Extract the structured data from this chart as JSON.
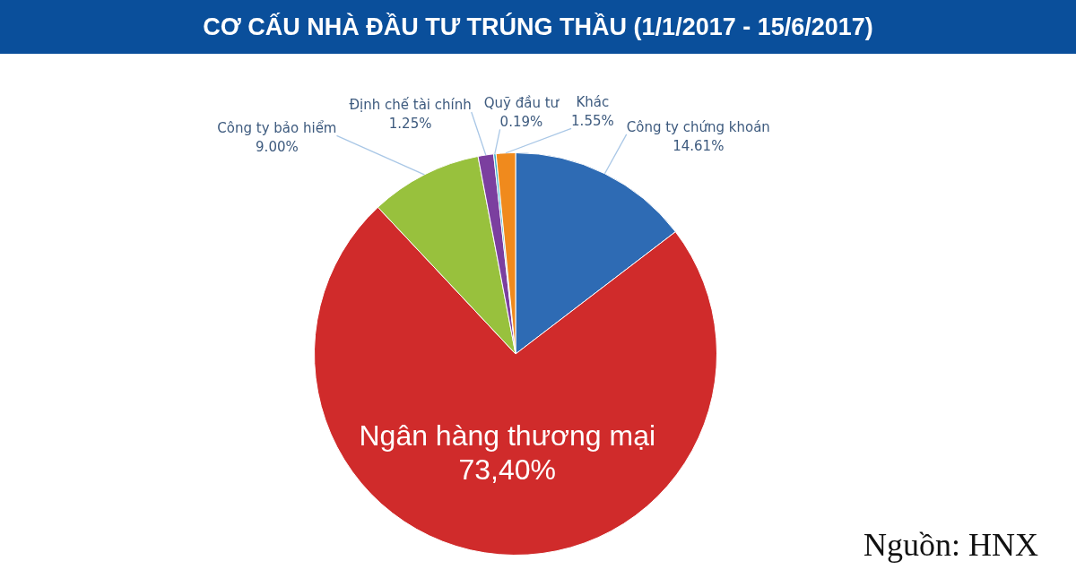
{
  "chart_data": {
    "type": "pie",
    "title": "CƠ CẤU NHÀ ĐẦU TƯ TRÚNG THẦU (1/1/2017 - 15/6/2017)",
    "categories": [
      "Công ty chứng khoán",
      "Ngân hàng thương mại",
      "Công ty bảo hiểm",
      "Định chế tài chính",
      "Quỹ đầu tư",
      "Khác"
    ],
    "values": [
      14.61,
      73.4,
      9.0,
      1.25,
      0.19,
      1.55
    ],
    "colors": [
      "#2e6bb4",
      "#d02b2b",
      "#98c13d",
      "#7b3f9f",
      "#3fb2c9",
      "#f08a1d"
    ],
    "value_labels": [
      "14.61%",
      "73,40%",
      "9.00%",
      "1.25%",
      "0.19%",
      "1.55%"
    ],
    "annotations": [
      "Nguồn: HNX"
    ]
  }
}
